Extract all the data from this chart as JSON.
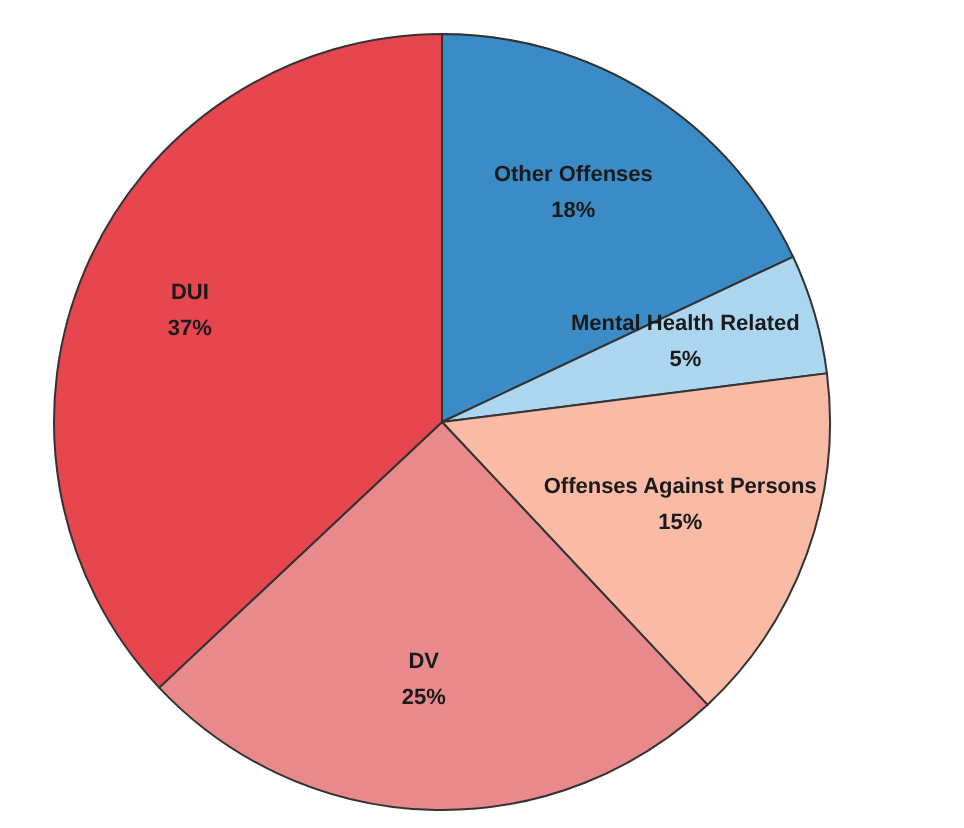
{
  "chart_data": {
    "type": "pie",
    "categories": [
      "Other Offenses",
      "Mental Health Related",
      "Offenses Against Persons",
      "DV",
      "DUI"
    ],
    "values": [
      18,
      5,
      15,
      25,
      37
    ],
    "value_labels": [
      "18%",
      "5%",
      "15%",
      "25%",
      "37%"
    ],
    "colors": [
      "#3b8cc6",
      "#acd5f0",
      "#f9bba6",
      "#e88a8b",
      "#e8464f"
    ]
  }
}
